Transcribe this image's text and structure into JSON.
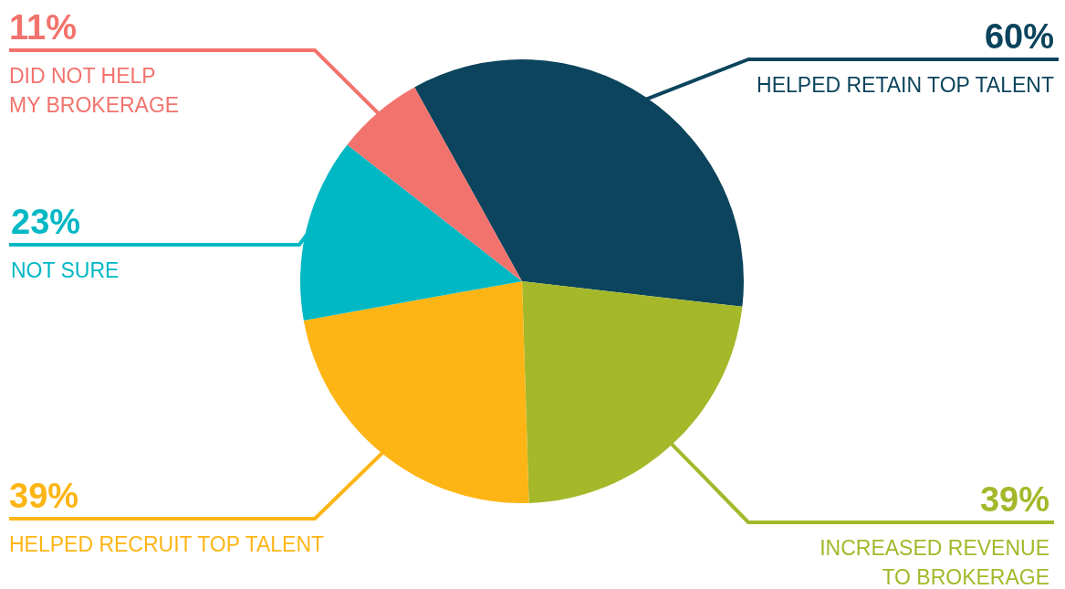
{
  "chart_data": {
    "type": "pie",
    "categories": [
      "HELPED RETAIN TOP TALENT",
      "INCREASED REVENUE TO BROKERAGE",
      "HELPED RECRUIT TOP TALENT",
      "NOT SURE",
      "DID NOT HELP MY BROKERAGE"
    ],
    "values": [
      60,
      39,
      39,
      23,
      11
    ],
    "value_labels": [
      "60%",
      "39%",
      "39%",
      "23%",
      "11%"
    ],
    "colors": [
      "#0b445c",
      "#a4b82a",
      "#fdb515",
      "#00b8c4",
      "#f2736d"
    ],
    "legend": false
  }
}
